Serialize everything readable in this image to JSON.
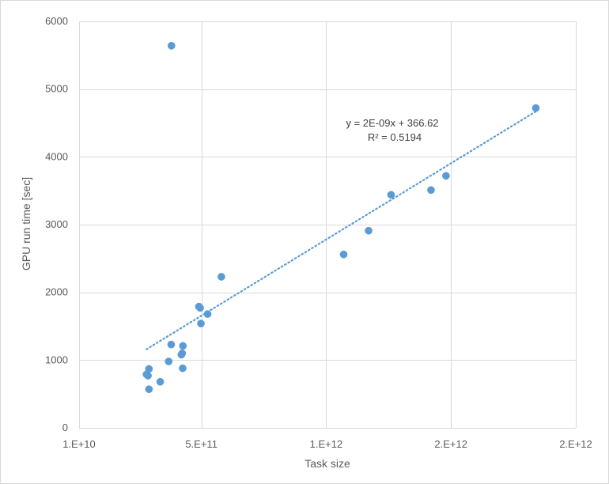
{
  "chart_data": {
    "type": "scatter",
    "title": "",
    "xlabel": "Task size",
    "ylabel": "GPU run time [sec]",
    "xlim": [
      10000000000,
      2000000000000
    ],
    "ylim": [
      0,
      6000
    ],
    "x_ticks": [
      10000000000,
      500000000000,
      1000000000000,
      1500000000000,
      2000000000000
    ],
    "x_tick_labels": [
      "1.E+10",
      "5.E+11",
      "1.E+12",
      "2.E+12",
      "2.E+12"
    ],
    "y_ticks": [
      0,
      1000,
      2000,
      3000,
      4000,
      5000,
      6000
    ],
    "y_tick_labels": [
      "0",
      "1000",
      "2000",
      "3000",
      "4000",
      "5000",
      "6000"
    ],
    "grid": true,
    "legend": "none",
    "series": [
      {
        "color": "#5b9bd5",
        "points": [
          {
            "x": 380000000000,
            "y": 5640
          },
          {
            "x": 1840000000000,
            "y": 4720
          },
          {
            "x": 1480000000000,
            "y": 3720
          },
          {
            "x": 1420000000000,
            "y": 3510
          },
          {
            "x": 1260000000000,
            "y": 3440
          },
          {
            "x": 1170000000000,
            "y": 2910
          },
          {
            "x": 1070000000000,
            "y": 2560
          },
          {
            "x": 580000000000,
            "y": 2230
          },
          {
            "x": 490000000000,
            "y": 1790
          },
          {
            "x": 495000000000,
            "y": 1770
          },
          {
            "x": 525000000000,
            "y": 1680
          },
          {
            "x": 498000000000,
            "y": 1540
          },
          {
            "x": 379000000000,
            "y": 1230
          },
          {
            "x": 426000000000,
            "y": 1210
          },
          {
            "x": 423000000000,
            "y": 1100
          },
          {
            "x": 420000000000,
            "y": 1080
          },
          {
            "x": 369000000000,
            "y": 980
          },
          {
            "x": 425000000000,
            "y": 880
          },
          {
            "x": 290000000000,
            "y": 870
          },
          {
            "x": 280000000000,
            "y": 790
          },
          {
            "x": 286000000000,
            "y": 770
          },
          {
            "x": 335000000000,
            "y": 680
          },
          {
            "x": 290000000000,
            "y": 570
          }
        ]
      }
    ],
    "trendline": {
      "type": "linear",
      "color": "#5b9bd5",
      "x_range": [
        280000000000,
        1840000000000
      ],
      "y_range": [
        1160,
        4670
      ],
      "equation": "y = 2E-09x + 366.62",
      "r_squared": "R² = 0.5194"
    }
  }
}
